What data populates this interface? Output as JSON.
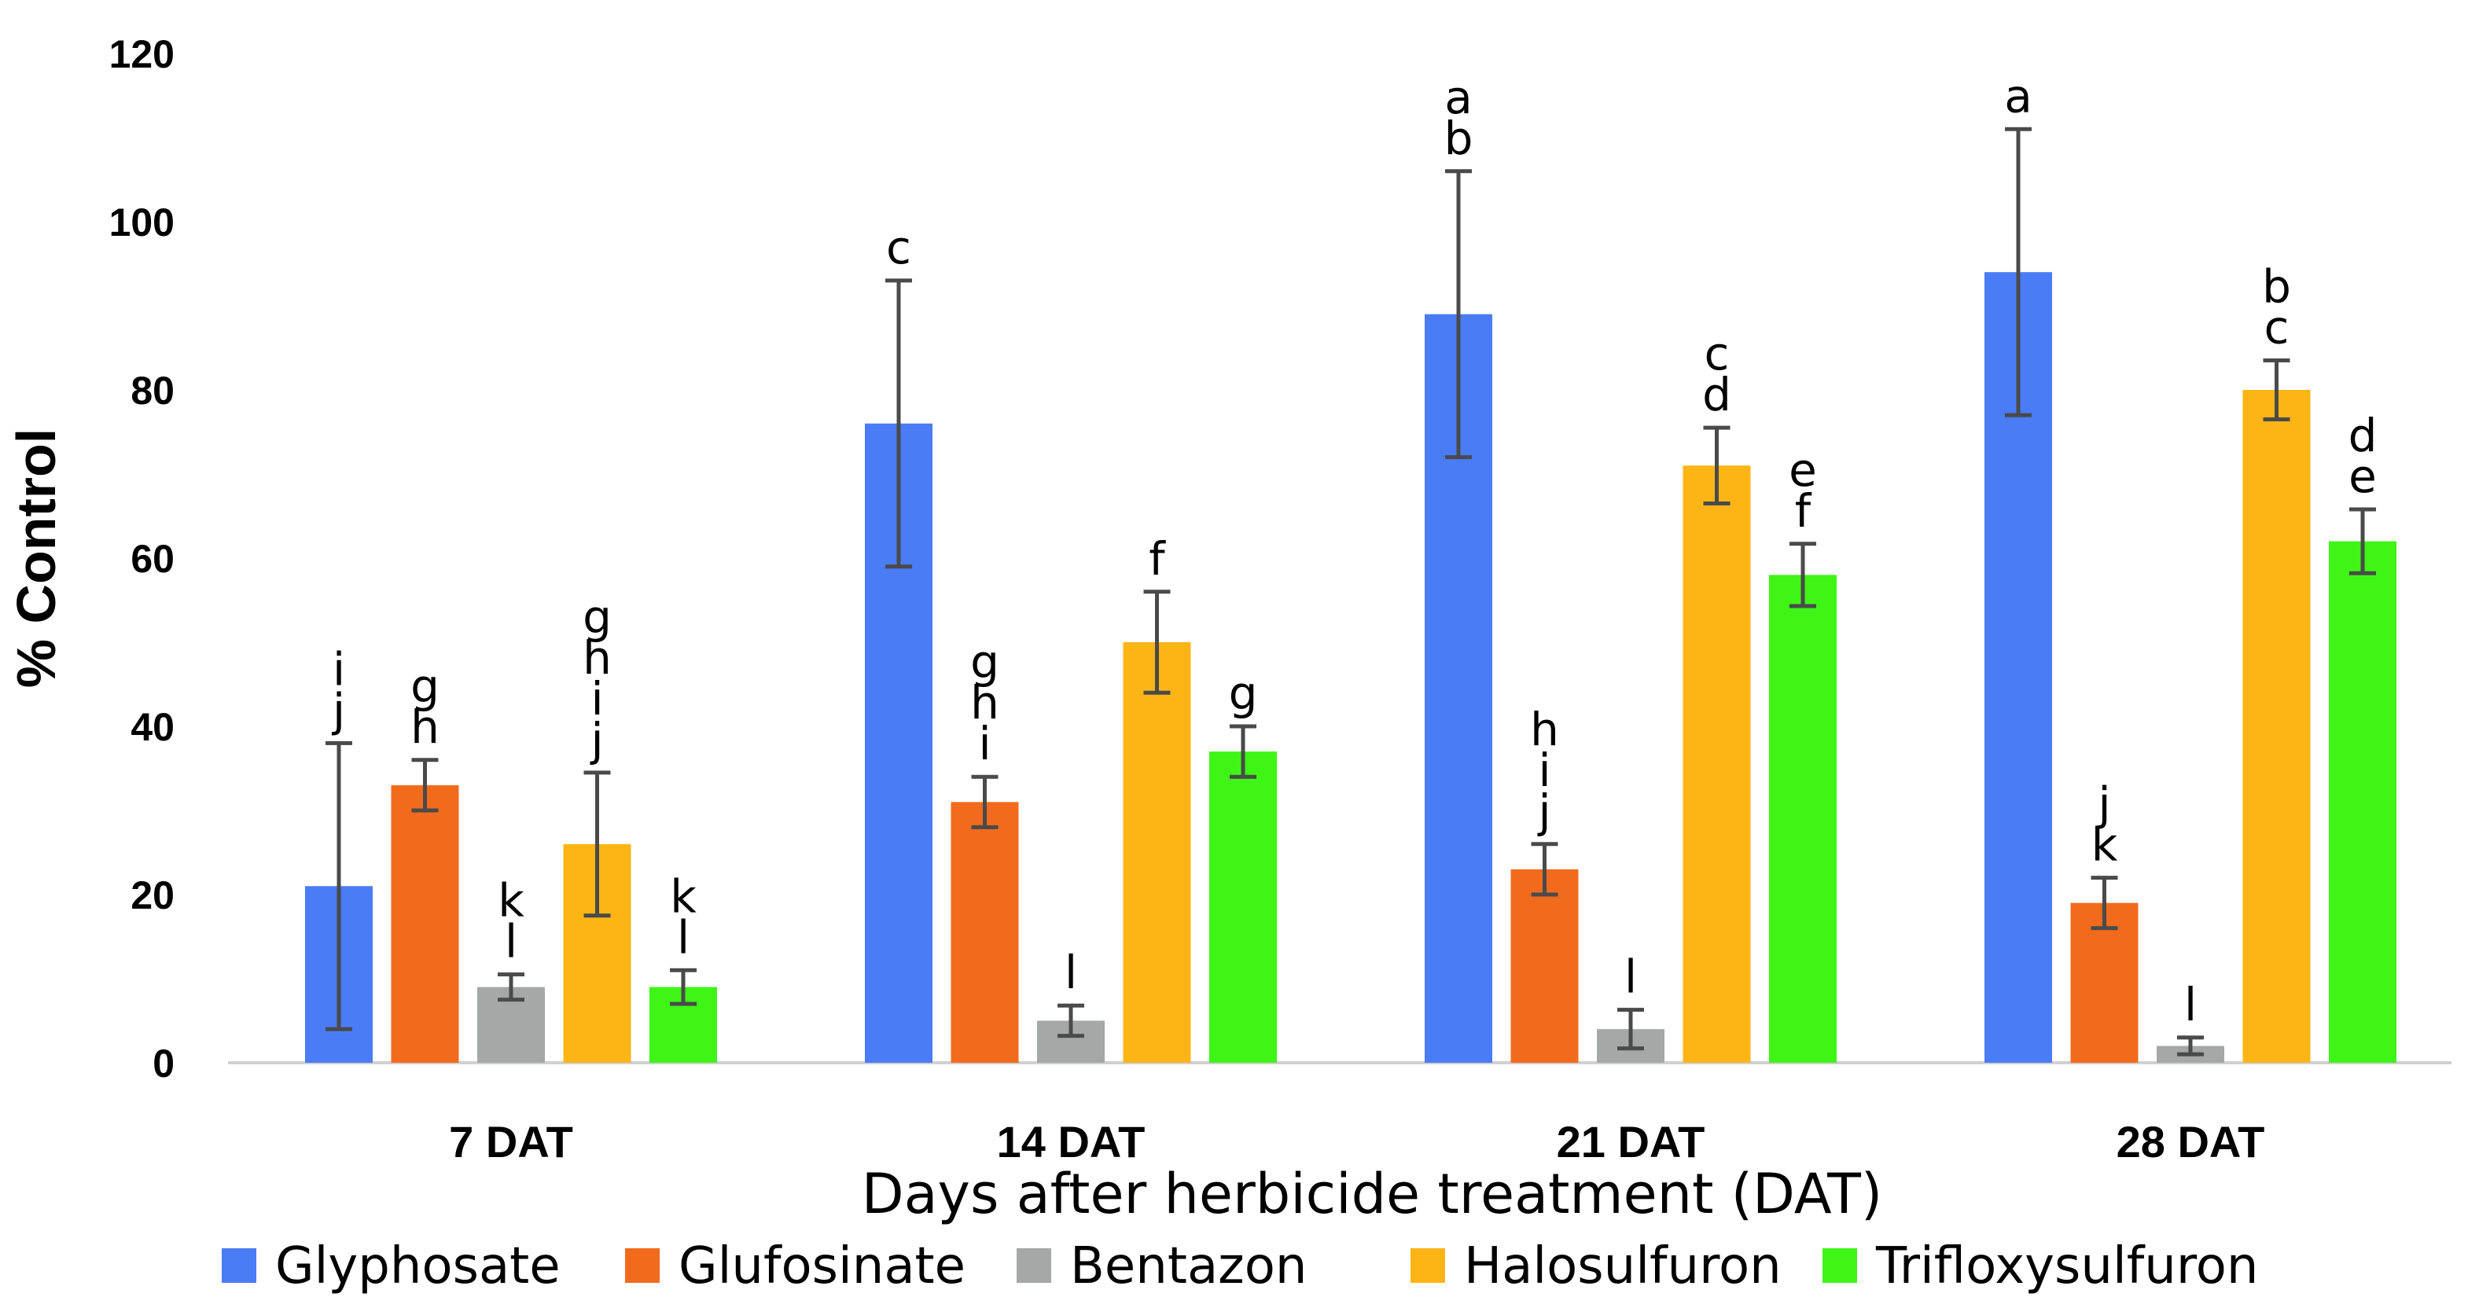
{
  "chart_data": {
    "type": "bar",
    "title": "",
    "xlabel": "Days after herbicide treatment (DAT)",
    "ylabel": "% Control",
    "ylim": [
      0,
      120
    ],
    "yticks": [
      0,
      20,
      40,
      60,
      80,
      100,
      120
    ],
    "ytick_labels": [
      "0",
      "20",
      "40",
      "60",
      "80",
      "100",
      "120"
    ],
    "categories": [
      "7 DAT",
      "14 DAT",
      "21 DAT",
      "28 DAT"
    ],
    "legend_position": "bottom",
    "error_bar_color": "#4a4a4a",
    "series": [
      {
        "name": "Glyphosate",
        "color": "#4a7cf5",
        "values": [
          21,
          76,
          89,
          94
        ],
        "errors": [
          17,
          17,
          17,
          17
        ],
        "letters": [
          [
            "i",
            "j"
          ],
          [
            "c"
          ],
          [
            "a",
            "b"
          ],
          [
            "a"
          ]
        ]
      },
      {
        "name": "Glufosinate",
        "color": "#f26b1d",
        "values": [
          33,
          31,
          23,
          19
        ],
        "errors": [
          3,
          3,
          3,
          3
        ],
        "letters": [
          [
            "g",
            "h"
          ],
          [
            "g",
            "h",
            "i"
          ],
          [
            "h",
            "i",
            "j"
          ],
          [
            "j",
            "k"
          ]
        ]
      },
      {
        "name": "Bentazon",
        "color": "#a5a8a6",
        "values": [
          9,
          5,
          4,
          2
        ],
        "errors": [
          1.5,
          1.8,
          2.3,
          1
        ],
        "letters": [
          [
            "k",
            "l"
          ],
          [
            "l"
          ],
          [
            "l"
          ],
          [
            "l"
          ]
        ]
      },
      {
        "name": "Halosulfuron",
        "color": "#fdb515",
        "values": [
          26,
          50,
          71,
          80
        ],
        "errors": [
          8.5,
          6,
          4.5,
          3.5
        ],
        "letters": [
          [
            "g",
            "h",
            "i",
            "j"
          ],
          [
            "f"
          ],
          [
            "c",
            "d"
          ],
          [
            "b",
            "c"
          ]
        ]
      },
      {
        "name": "Trifloxysulfuron",
        "color": "#3ef516",
        "values": [
          9,
          37,
          58,
          62
        ],
        "errors": [
          2,
          3,
          3.7,
          3.8
        ],
        "letters": [
          [
            "k",
            "l"
          ],
          [
            "g"
          ],
          [
            "e",
            "f"
          ],
          [
            "d",
            "e"
          ]
        ]
      }
    ]
  }
}
